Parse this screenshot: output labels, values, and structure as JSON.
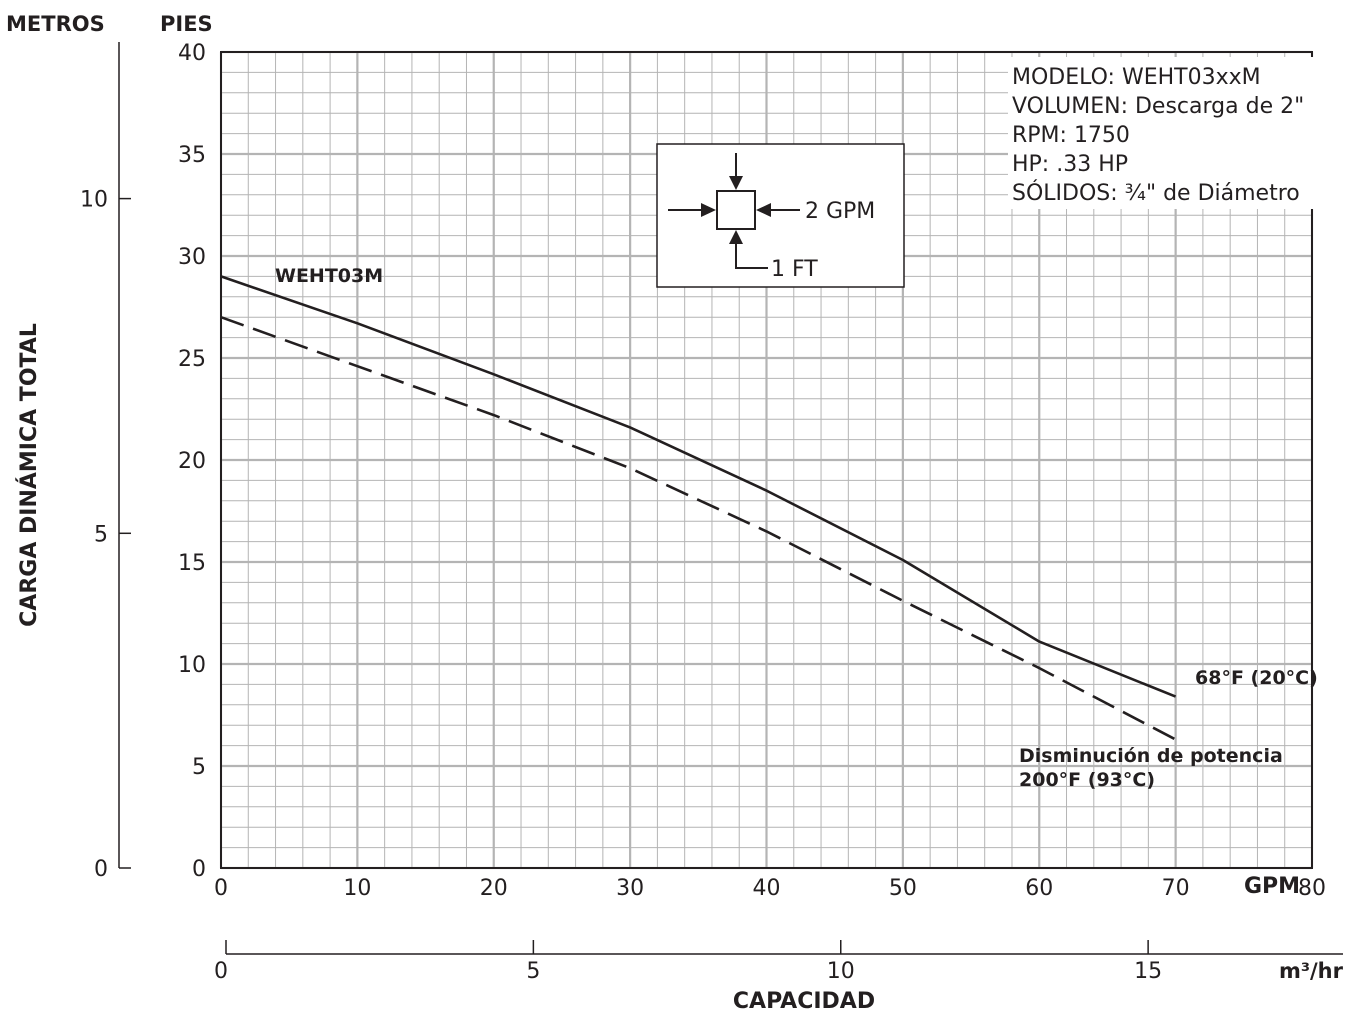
{
  "chart_data": {
    "type": "line",
    "left_axis_units": [
      "METROS",
      "PIES"
    ],
    "ylabel": "CARGA DINÁMICA TOTAL",
    "xlabel": "CAPACIDAD",
    "x_unit_gpm": "GPM",
    "x_unit_m3hr": "m³/hr",
    "x_gpm": {
      "lim": [
        0,
        80
      ],
      "major_ticks": [
        0,
        10,
        20,
        30,
        40,
        50,
        60,
        70,
        80
      ],
      "tick_labels": [
        "0",
        "10",
        "20",
        "30",
        "40",
        "50",
        "60",
        "70",
        "80"
      ]
    },
    "x_m3hr": {
      "lim": [
        0,
        18.17
      ],
      "ticks": [
        0,
        5,
        10,
        15
      ],
      "tick_labels": [
        "0",
        "5",
        "10",
        "15"
      ]
    },
    "y_feet": {
      "lim": [
        0,
        40
      ],
      "major_ticks": [
        0,
        5,
        10,
        15,
        20,
        25,
        30,
        35,
        40
      ],
      "tick_labels": [
        "0",
        "5",
        "10",
        "15",
        "20",
        "25",
        "30",
        "35",
        "40"
      ]
    },
    "y_meters": {
      "lim": [
        0,
        12.19
      ],
      "ticks": [
        0,
        5,
        10
      ],
      "tick_labels": [
        "0",
        "5",
        "10"
      ]
    },
    "grid": true,
    "minor_grid_step": {
      "x": 2,
      "y": 1
    },
    "series": [
      {
        "name": "WEHT03M",
        "end_label": "68°F (20°C)",
        "style": "solid",
        "x": [
          0,
          10,
          20,
          30,
          40,
          50,
          60,
          70
        ],
        "y": [
          29,
          26.7,
          24.2,
          21.6,
          18.5,
          15.1,
          11.1,
          8.4
        ]
      },
      {
        "name": "",
        "end_label_lines": [
          "Disminución de potencia",
          "200°F (93°C)"
        ],
        "style": "dashed",
        "x": [
          0,
          10,
          20,
          30,
          40,
          50,
          60,
          70
        ],
        "y": [
          27,
          24.6,
          22.2,
          19.6,
          16.5,
          13.1,
          9.8,
          6.3
        ]
      }
    ],
    "legend_box": {
      "lines": [
        "MODELO: WEHT03xxM",
        "VOLUMEN: Descarga de 2\"",
        "RPM: 1750",
        "HP: .33 HP",
        "SÓLIDOS: ¾\" de Diámetro"
      ]
    },
    "scale_box": {
      "gpm_label": "2 GPM",
      "ft_label": "1 FT"
    },
    "colors": {
      "ink": "#231f20",
      "grid": "#b4b4b4",
      "background": "#ffffff"
    }
  }
}
